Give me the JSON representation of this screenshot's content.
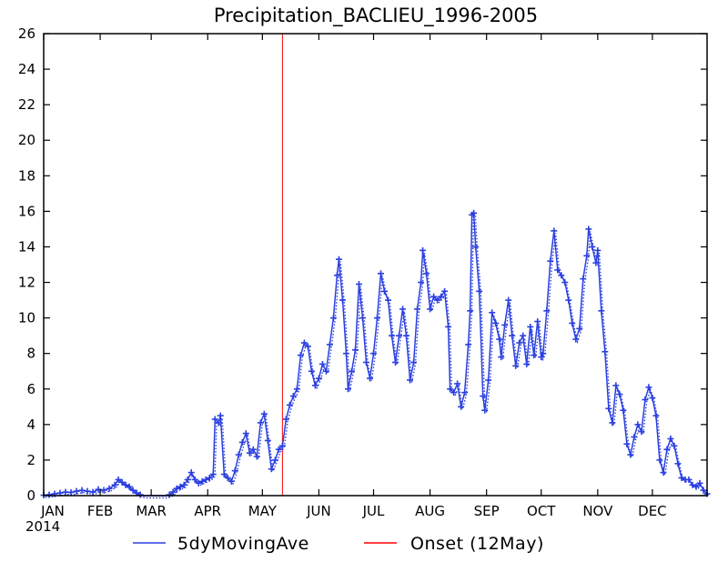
{
  "chart_data": {
    "type": "line",
    "title": "Precipitation_BACLIEU_1996-2005",
    "xlabel": "",
    "ylabel": "",
    "ylim": [
      0,
      26
    ],
    "yticks": [
      0,
      2,
      4,
      6,
      8,
      10,
      12,
      14,
      16,
      18,
      20,
      22,
      24,
      26
    ],
    "xlim": [
      1,
      365
    ],
    "x_ticks": [
      {
        "label": "JAN",
        "day": 1
      },
      {
        "label": "FEB",
        "day": 32
      },
      {
        "label": "MAR",
        "day": 60
      },
      {
        "label": "APR",
        "day": 91
      },
      {
        "label": "MAY",
        "day": 121
      },
      {
        "label": "JUN",
        "day": 152
      },
      {
        "label": "JUL",
        "day": 182
      },
      {
        "label": "AUG",
        "day": 213
      },
      {
        "label": "SEP",
        "day": 244
      },
      {
        "label": "OCT",
        "day": 274
      },
      {
        "label": "NOV",
        "day": 305
      },
      {
        "label": "DEC",
        "day": 335
      }
    ],
    "year_label": "2014",
    "grid": false,
    "legend_position": "bottom",
    "series": [
      {
        "name": "5dyMovingAve",
        "color": "#2a3fe0",
        "marker": "plus",
        "points": [
          [
            1,
            0.02
          ],
          [
            4,
            0.05
          ],
          [
            7,
            0.1
          ],
          [
            10,
            0.15
          ],
          [
            13,
            0.2
          ],
          [
            16,
            0.18
          ],
          [
            19,
            0.25
          ],
          [
            22,
            0.3
          ],
          [
            25,
            0.25
          ],
          [
            28,
            0.2
          ],
          [
            31,
            0.35
          ],
          [
            34,
            0.3
          ],
          [
            37,
            0.4
          ],
          [
            40,
            0.6
          ],
          [
            42,
            0.9
          ],
          [
            44,
            0.75
          ],
          [
            46,
            0.6
          ],
          [
            48,
            0.5
          ],
          [
            50,
            0.3
          ],
          [
            52,
            0.15
          ],
          [
            54,
            0.05
          ],
          [
            56,
            0
          ],
          [
            58,
            0
          ],
          [
            60,
            0
          ],
          [
            62,
            0
          ],
          [
            64,
            0
          ],
          [
            66,
            0
          ],
          [
            68,
            0
          ],
          [
            70,
            0.05
          ],
          [
            72,
            0.2
          ],
          [
            74,
            0.4
          ],
          [
            76,
            0.5
          ],
          [
            78,
            0.6
          ],
          [
            80,
            0.9
          ],
          [
            82,
            1.3
          ],
          [
            84,
            0.9
          ],
          [
            86,
            0.7
          ],
          [
            88,
            0.8
          ],
          [
            90,
            0.9
          ],
          [
            92,
            1.0
          ],
          [
            94,
            1.2
          ],
          [
            95,
            4.3
          ],
          [
            97,
            4.1
          ],
          [
            98,
            4.5
          ],
          [
            100,
            1.2
          ],
          [
            102,
            1.0
          ],
          [
            104,
            0.8
          ],
          [
            106,
            1.4
          ],
          [
            108,
            2.3
          ],
          [
            110,
            3.0
          ],
          [
            112,
            3.5
          ],
          [
            114,
            2.4
          ],
          [
            116,
            2.6
          ],
          [
            118,
            2.2
          ],
          [
            120,
            4.1
          ],
          [
            122,
            4.6
          ],
          [
            124,
            3.1
          ],
          [
            126,
            1.5
          ],
          [
            128,
            2.0
          ],
          [
            130,
            2.6
          ],
          [
            132,
            2.8
          ],
          [
            134,
            4.3
          ],
          [
            136,
            5.1
          ],
          [
            138,
            5.6
          ],
          [
            140,
            6.0
          ],
          [
            142,
            7.9
          ],
          [
            144,
            8.6
          ],
          [
            146,
            8.4
          ],
          [
            148,
            7.0
          ],
          [
            150,
            6.2
          ],
          [
            152,
            6.6
          ],
          [
            154,
            7.4
          ],
          [
            156,
            7.0
          ],
          [
            158,
            8.5
          ],
          [
            160,
            10.0
          ],
          [
            162,
            12.4
          ],
          [
            163,
            13.3
          ],
          [
            165,
            11.0
          ],
          [
            167,
            8.0
          ],
          [
            168,
            6.0
          ],
          [
            170,
            7.0
          ],
          [
            172,
            8.2
          ],
          [
            174,
            11.9
          ],
          [
            176,
            10.0
          ],
          [
            178,
            7.5
          ],
          [
            180,
            6.6
          ],
          [
            182,
            8.0
          ],
          [
            184,
            10.0
          ],
          [
            186,
            12.5
          ],
          [
            188,
            11.5
          ],
          [
            190,
            11.0
          ],
          [
            192,
            9.0
          ],
          [
            194,
            7.5
          ],
          [
            196,
            9.0
          ],
          [
            198,
            10.5
          ],
          [
            200,
            9.0
          ],
          [
            202,
            6.5
          ],
          [
            204,
            7.5
          ],
          [
            206,
            10.5
          ],
          [
            208,
            12.0
          ],
          [
            209,
            13.8
          ],
          [
            211,
            12.5
          ],
          [
            213,
            10.5
          ],
          [
            215,
            11.2
          ],
          [
            217,
            11.0
          ],
          [
            219,
            11.2
          ],
          [
            221,
            11.5
          ],
          [
            223,
            9.5
          ],
          [
            224,
            6.0
          ],
          [
            226,
            5.8
          ],
          [
            228,
            6.3
          ],
          [
            230,
            5.0
          ],
          [
            232,
            5.8
          ],
          [
            234,
            8.5
          ],
          [
            235,
            10.4
          ],
          [
            236,
            15.8
          ],
          [
            237,
            15.9
          ],
          [
            238,
            14.0
          ],
          [
            240,
            11.5
          ],
          [
            242,
            5.6
          ],
          [
            243,
            4.8
          ],
          [
            245,
            6.5
          ],
          [
            247,
            10.3
          ],
          [
            249,
            9.7
          ],
          [
            251,
            8.8
          ],
          [
            252,
            7.8
          ],
          [
            254,
            9.6
          ],
          [
            256,
            11.0
          ],
          [
            258,
            9.0
          ],
          [
            260,
            7.3
          ],
          [
            262,
            8.6
          ],
          [
            264,
            9.0
          ],
          [
            266,
            7.4
          ],
          [
            268,
            9.5
          ],
          [
            270,
            7.9
          ],
          [
            272,
            9.8
          ],
          [
            274,
            7.8
          ],
          [
            275,
            8.0
          ],
          [
            277,
            10.4
          ],
          [
            279,
            13.2
          ],
          [
            281,
            14.9
          ],
          [
            283,
            12.7
          ],
          [
            285,
            12.4
          ],
          [
            287,
            12.0
          ],
          [
            289,
            11.0
          ],
          [
            291,
            9.7
          ],
          [
            293,
            8.8
          ],
          [
            295,
            9.4
          ],
          [
            297,
            12.2
          ],
          [
            299,
            13.5
          ],
          [
            300,
            15.0
          ],
          [
            302,
            14.0
          ],
          [
            304,
            13.1
          ],
          [
            305,
            13.8
          ],
          [
            307,
            10.4
          ],
          [
            309,
            8.1
          ],
          [
            311,
            4.9
          ],
          [
            313,
            4.1
          ],
          [
            315,
            6.2
          ],
          [
            317,
            5.7
          ],
          [
            319,
            4.8
          ],
          [
            321,
            2.9
          ],
          [
            323,
            2.3
          ],
          [
            325,
            3.3
          ],
          [
            327,
            4.0
          ],
          [
            329,
            3.6
          ],
          [
            331,
            5.4
          ],
          [
            333,
            6.1
          ],
          [
            335,
            5.5
          ],
          [
            337,
            4.5
          ],
          [
            339,
            2.0
          ],
          [
            341,
            1.3
          ],
          [
            343,
            2.6
          ],
          [
            345,
            3.2
          ],
          [
            347,
            2.8
          ],
          [
            349,
            1.8
          ],
          [
            351,
            1.0
          ],
          [
            353,
            0.9
          ],
          [
            355,
            0.9
          ],
          [
            357,
            0.6
          ],
          [
            359,
            0.5
          ],
          [
            361,
            0.7
          ],
          [
            363,
            0.3
          ],
          [
            365,
            0.1
          ]
        ]
      },
      {
        "name": "Onset (12May)",
        "color": "#ff0000",
        "type": "vline",
        "x": 132
      }
    ]
  }
}
